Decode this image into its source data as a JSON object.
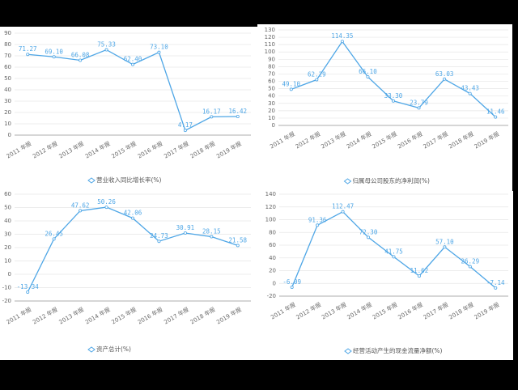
{
  "chart_data": [
    {
      "type": "line",
      "categories": [
        "2011 年报",
        "2012 年报",
        "2013 年报",
        "2014 年报",
        "2015 年报",
        "2016 年报",
        "2017 年报",
        "2018 年报",
        "2019 年报"
      ],
      "series": [
        {
          "name": "营业收入同比增长率(%)",
          "color": "#4ea6e6",
          "values": [
            71.27,
            69.1,
            66.08,
            75.33,
            62.4,
            73.1,
            4.17,
            16.17,
            16.42
          ],
          "value_labels": [
            "71.27",
            "69.10",
            "66.08",
            "75.33",
            "62.40",
            "73.10",
            "4.17",
            "16.17",
            "16.42"
          ]
        }
      ],
      "ylim": [
        0,
        90
      ],
      "yticks": [
        0,
        10,
        20,
        30,
        40,
        50,
        60,
        70,
        80,
        90
      ],
      "grid": true
    },
    {
      "type": "line",
      "categories": [
        "2011 年报",
        "2012 年报",
        "2013 年报",
        "2014 年报",
        "2015 年报",
        "2016 年报",
        "2017 年报",
        "2018 年报",
        "2019 年报"
      ],
      "series": [
        {
          "name": "归属母公司股东的净利润(%)",
          "color": "#4ea6e6",
          "values": [
            49.1,
            62.29,
            114.35,
            66.1,
            33.3,
            23.79,
            63.03,
            43.43,
            11.46
          ],
          "value_labels": [
            "49.10",
            "62.29",
            "114.35",
            "66.10",
            "33.30",
            "23.79",
            "63.03",
            "43.43",
            "11.46"
          ]
        }
      ],
      "ylim": [
        0,
        130
      ],
      "yticks": [
        0,
        10,
        20,
        30,
        40,
        50,
        60,
        70,
        80,
        90,
        100,
        110,
        120,
        130
      ],
      "grid": true
    },
    {
      "type": "line",
      "categories": [
        "2011 年报",
        "2012 年报",
        "2013 年报",
        "2014 年报",
        "2015 年报",
        "2016 年报",
        "2017 年报",
        "2018 年报",
        "2019 年报"
      ],
      "series": [
        {
          "name": "资产总计(%)",
          "color": "#4ea6e6",
          "values": [
            -13.34,
            26.45,
            47.62,
            50.26,
            42.06,
            24.73,
            30.91,
            28.15,
            21.58
          ],
          "value_labels": [
            "-13.34",
            "26.45",
            "47.62",
            "50.26",
            "42.06",
            "24.73",
            "30.91",
            "28.15",
            "21.58"
          ]
        }
      ],
      "ylim": [
        -20,
        60
      ],
      "yticks": [
        -20,
        -10,
        0,
        10,
        20,
        30,
        40,
        50,
        60
      ],
      "grid": true
    },
    {
      "type": "line",
      "categories": [
        "2011 年报",
        "2012 年报",
        "2013 年报",
        "2014 年报",
        "2015 年报",
        "2016 年报",
        "2017 年报",
        "2018 年报",
        "2019 年报"
      ],
      "series": [
        {
          "name": "经营活动产生的现金流量净额(%)",
          "color": "#4ea6e6",
          "values": [
            -6.09,
            91.36,
            112.47,
            72.3,
            41.75,
            11.62,
            57.1,
            26.29,
            -7.14
          ],
          "value_labels": [
            "-6.09",
            "91.36",
            "112.47",
            "72.30",
            "41.75",
            "11.62",
            "57.10",
            "26.29",
            "-7.14"
          ]
        }
      ],
      "ylim": [
        -20,
        140
      ],
      "yticks": [
        -20,
        0,
        20,
        40,
        60,
        80,
        100,
        120,
        140
      ],
      "grid": true
    }
  ]
}
